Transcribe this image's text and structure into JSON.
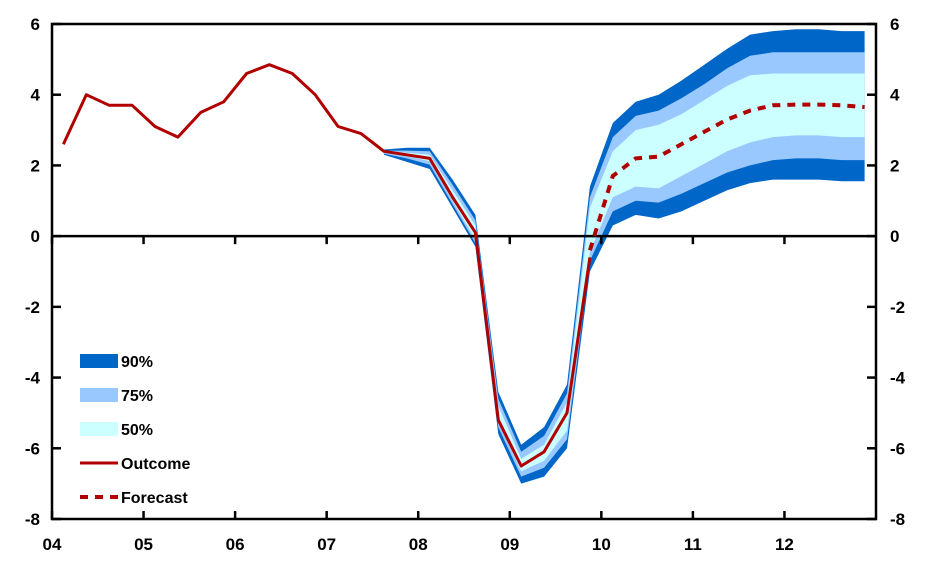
{
  "chart_data": {
    "type": "area",
    "title": "",
    "xlabel": "",
    "ylabel": "",
    "ylim": [
      -8,
      6
    ],
    "yticks": [
      6,
      4,
      2,
      0,
      -2,
      -4,
      -6,
      -8
    ],
    "xlim": [
      2004.0,
      2013.0
    ],
    "xtick_labels": [
      "04",
      "05",
      "06",
      "07",
      "08",
      "09",
      "10",
      "11",
      "12"
    ],
    "xtick_years": [
      2004,
      2005,
      2006,
      2007,
      2008,
      2009,
      2010,
      2011,
      2012
    ],
    "y_axis_both_sides": true,
    "grid": false,
    "legend_position": "bottom-left",
    "colors": {
      "band_90": "#0066c8",
      "band_75": "#99c8ff",
      "band_50": "#ccffff",
      "outcome": "#b00000",
      "forecast": "#b00000",
      "axes": "#000000"
    },
    "legend": [
      {
        "key": "band_90",
        "label": "90%"
      },
      {
        "key": "band_75",
        "label": "75%"
      },
      {
        "key": "band_50",
        "label": "50%"
      },
      {
        "key": "outcome",
        "label": "Outcome"
      },
      {
        "key": "forecast",
        "label": "Forecast"
      }
    ],
    "outcome": {
      "x": [
        2004.125,
        2004.375,
        2004.625,
        2004.875,
        2005.125,
        2005.375,
        2005.625,
        2005.875,
        2006.125,
        2006.375,
        2006.625,
        2006.875,
        2007.125,
        2007.375,
        2007.625,
        2007.875,
        2008.125,
        2008.375,
        2008.625,
        2008.875,
        2009.125,
        2009.375,
        2009.625,
        2009.875
      ],
      "y": [
        2.6,
        4.0,
        3.7,
        3.7,
        3.1,
        2.8,
        3.5,
        3.8,
        4.6,
        4.85,
        4.6,
        4.0,
        3.1,
        2.9,
        2.4,
        2.3,
        2.2,
        1.1,
        0.1,
        -5.2,
        -6.5,
        -6.1,
        -5.0,
        -0.6
      ]
    },
    "forecast": {
      "x": [
        2009.875,
        2010.125,
        2010.375,
        2010.625,
        2010.875,
        2011.125,
        2011.375,
        2011.625,
        2011.875,
        2012.125,
        2012.375,
        2012.625,
        2012.875
      ],
      "y": [
        -0.4,
        1.7,
        2.2,
        2.25,
        2.6,
        2.95,
        3.3,
        3.55,
        3.7,
        3.72,
        3.72,
        3.7,
        3.65
      ]
    },
    "bands": {
      "x": [
        2007.625,
        2007.875,
        2008.125,
        2008.375,
        2008.625,
        2008.875,
        2009.125,
        2009.375,
        2009.625,
        2009.875,
        2010.125,
        2010.375,
        2010.625,
        2010.875,
        2011.125,
        2011.375,
        2011.625,
        2011.875,
        2012.125,
        2012.375,
        2012.625,
        2012.875
      ],
      "p90": {
        "lower": [
          2.3,
          2.1,
          1.9,
          0.8,
          -0.3,
          -5.6,
          -7.0,
          -6.8,
          -6.0,
          -1.0,
          0.3,
          0.6,
          0.5,
          0.7,
          1.0,
          1.3,
          1.5,
          1.6,
          1.6,
          1.6,
          1.55,
          1.55
        ],
        "upper": [
          2.45,
          2.5,
          2.5,
          1.6,
          0.6,
          -4.4,
          -5.9,
          -5.4,
          -4.2,
          1.4,
          3.2,
          3.8,
          4.0,
          4.4,
          4.85,
          5.3,
          5.7,
          5.8,
          5.85,
          5.85,
          5.8,
          5.8
        ]
      },
      "p75": {
        "lower": [
          2.33,
          2.2,
          2.02,
          0.9,
          -0.2,
          -5.4,
          -6.8,
          -6.55,
          -5.75,
          -0.7,
          0.7,
          1.0,
          0.95,
          1.2,
          1.5,
          1.8,
          2.0,
          2.15,
          2.2,
          2.2,
          2.15,
          2.15
        ],
        "upper": [
          2.42,
          2.42,
          2.4,
          1.45,
          0.45,
          -4.6,
          -6.1,
          -5.65,
          -4.45,
          1.1,
          2.8,
          3.4,
          3.55,
          3.9,
          4.3,
          4.75,
          5.1,
          5.2,
          5.2,
          5.2,
          5.2,
          5.2
        ]
      },
      "p50": {
        "lower": [
          2.36,
          2.27,
          2.12,
          1.0,
          -0.1,
          -5.25,
          -6.65,
          -6.35,
          -5.5,
          -0.45,
          1.1,
          1.4,
          1.35,
          1.7,
          2.05,
          2.4,
          2.65,
          2.8,
          2.85,
          2.85,
          2.8,
          2.8
        ],
        "upper": [
          2.4,
          2.36,
          2.3,
          1.3,
          0.3,
          -4.8,
          -6.3,
          -5.9,
          -4.7,
          0.8,
          2.4,
          3.0,
          3.15,
          3.45,
          3.85,
          4.25,
          4.55,
          4.6,
          4.6,
          4.6,
          4.6,
          4.6
        ]
      }
    }
  }
}
